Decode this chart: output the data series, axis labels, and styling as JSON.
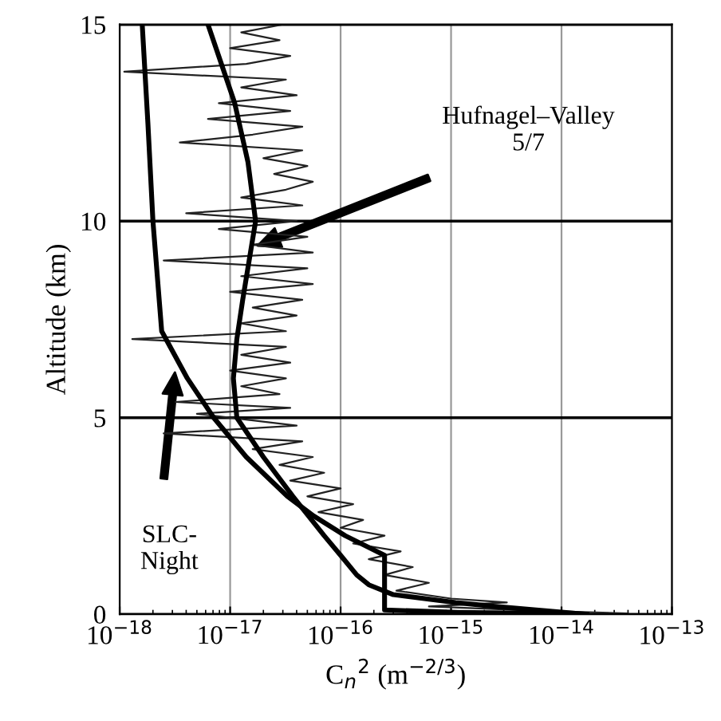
{
  "chart_data": {
    "type": "line",
    "xlabel": "C$_{n}$$^{2}$ (m$^{−2/3}$)",
    "ylabel": "Altitude (km)",
    "log": "x",
    "grid": true,
    "xlim": [
      1e-18,
      1e-13
    ],
    "xticks": [
      {
        "value": 1e-18,
        "label": "10$^{−18}$"
      },
      {
        "value": 1e-17,
        "label": "10$^{−17}$"
      },
      {
        "value": 1e-16,
        "label": "10$^{−16}$"
      },
      {
        "value": 1e-15,
        "label": "10$^{−15}$"
      },
      {
        "value": 1e-14,
        "label": "10$^{−14}$"
      },
      {
        "value": 1e-13,
        "label": "10$^{−13}$"
      }
    ],
    "ylim": [
      0,
      15
    ],
    "yticks": [
      0,
      5,
      10,
      15
    ],
    "series": [
      {
        "color": "#000000",
        "x": [
          1.7e-14,
          6.5e-15,
          2.5e-15,
          1.1e-15,
          3e-16,
          1.8e-16,
          1.4e-16,
          1e-16,
          7.1e-17,
          3.7e-17,
          2e-17,
          1.15e-17,
          1.07e-17,
          1.15e-17,
          1.3e-17,
          1.7e-17,
          1.45e-17,
          1.1e-17,
          6.3e-18
        ],
        "values": [
          0,
          0.1,
          0.2,
          0.3,
          0.5,
          0.75,
          1.0,
          1.5,
          2,
          3,
          4,
          5,
          6,
          7,
          8,
          10,
          11.5,
          13,
          15
        ]
      },
      {
        "color": "#000000",
        "x": [
          8.4e-15,
          8.4e-15,
          1.15e-15,
          2.5e-16,
          2.5e-16,
          1.1e-16,
          5.7e-17,
          3.3e-17,
          1.4e-17,
          7.1e-18,
          4.1e-18,
          2.4e-18,
          2e-18,
          1.8e-18,
          1.6e-18
        ],
        "values": [
          0,
          0.02,
          0.05,
          0.11,
          1.5,
          2,
          2.5,
          3,
          4,
          5,
          6,
          7.2,
          10,
          12.5,
          15
        ]
      },
      {
        "color": "#222222",
        "x": [
          3e-17,
          1.26e-17,
          2.8e-17,
          1e-17,
          3.5e-17,
          1.4e-17,
          1.1e-18,
          3.2e-17,
          1.26e-17,
          4e-17,
          7.9e-18,
          3.5e-17,
          6.3e-18,
          4.5e-17,
          1.6e-17,
          3.5e-18,
          4.5e-17,
          2e-17,
          5e-17,
          2.5e-17,
          5.6e-17,
          3.2e-17,
          1.26e-17,
          4.5e-17,
          4e-18,
          4e-17,
          7.9e-18,
          5e-17,
          1.6e-17,
          5.6e-17,
          2.5e-18,
          5e-17,
          1.26e-17,
          5.6e-17,
          1e-17,
          4.5e-17,
          1.6e-17,
          4e-17,
          1.26e-17,
          3.2e-17,
          1.3e-18,
          3.2e-17,
          1.26e-17,
          3.5e-17,
          1e-17,
          3.2e-17,
          1.26e-17,
          2.8e-17,
          3.2e-18,
          3.5e-17,
          5e-18,
          4e-17,
          2.5e-18,
          4.5e-17,
          1.6e-17,
          5.6e-17,
          2.8e-17,
          7.1e-17,
          3.5e-17,
          1e-16,
          5e-17,
          1.3e-16,
          6.3e-17,
          1.6e-16,
          1e-16,
          2.5e-16,
          1.3e-16,
          3.5e-16,
          1.8e-16,
          4.5e-16,
          2.5e-16,
          6.3e-16,
          3.2e-16,
          1e-15,
          3.2e-15,
          6.3e-16,
          5e-15,
          4e-14,
          1.6e-14
        ],
        "values": [
          15.0,
          14.8,
          14.6,
          14.4,
          14.2,
          14.0,
          13.8,
          13.6,
          13.4,
          13.2,
          13.0,
          12.8,
          12.6,
          12.4,
          12.2,
          12.0,
          11.8,
          11.6,
          11.4,
          11.2,
          11.0,
          10.8,
          10.6,
          10.4,
          10.2,
          10.0,
          9.8,
          9.6,
          9.4,
          9.2,
          9.0,
          8.8,
          8.6,
          8.4,
          8.2,
          8.0,
          7.8,
          7.6,
          7.4,
          7.2,
          7.0,
          6.8,
          6.6,
          6.4,
          6.2,
          6.0,
          5.8,
          5.6,
          5.4,
          5.25,
          5.1,
          4.8,
          4.6,
          4.4,
          4.2,
          4.0,
          3.8,
          3.6,
          3.4,
          3.2,
          3.0,
          2.8,
          2.6,
          2.4,
          2.2,
          2.0,
          1.8,
          1.6,
          1.4,
          1.2,
          1.0,
          0.8,
          0.6,
          0.4,
          0.3,
          0.2,
          0.1,
          0.02,
          0.0
        ]
      }
    ],
    "annotations": [
      "Hufnagel–Valley\n5/7",
      "SLC-\nNight"
    ]
  }
}
